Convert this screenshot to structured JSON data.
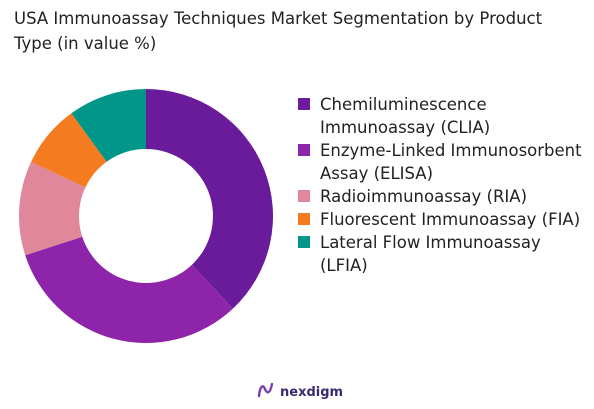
{
  "chart_data": {
    "type": "pie",
    "title": "USA Immunoassay Techniques Market Segmentation by Product Type (in value %)",
    "donut": true,
    "start_angle_deg": 0,
    "direction": "clockwise",
    "legend_position": "right",
    "slices": [
      {
        "label": "Chemiluminescence Immunoassay (CLIA)",
        "value": 38,
        "color": "#6a1b9a"
      },
      {
        "label": "Enzyme-Linked Immunosorbent Assay (ELISA)",
        "value": 32,
        "color": "#8e24aa"
      },
      {
        "label": "Radioimmunoassay (RIA)",
        "value": 12,
        "color": "#e0879b"
      },
      {
        "label": "Fluorescent Immunoassay (FIA)",
        "value": 8,
        "color": "#f47b20"
      },
      {
        "label": "Lateral Flow Immunoassay (LFIA)",
        "value": 10,
        "color": "#009688"
      }
    ]
  },
  "footer": {
    "brand": "nexdigm",
    "logo_icon": "nexdigm-logo-icon",
    "brand_color": "#3b2a6e"
  }
}
